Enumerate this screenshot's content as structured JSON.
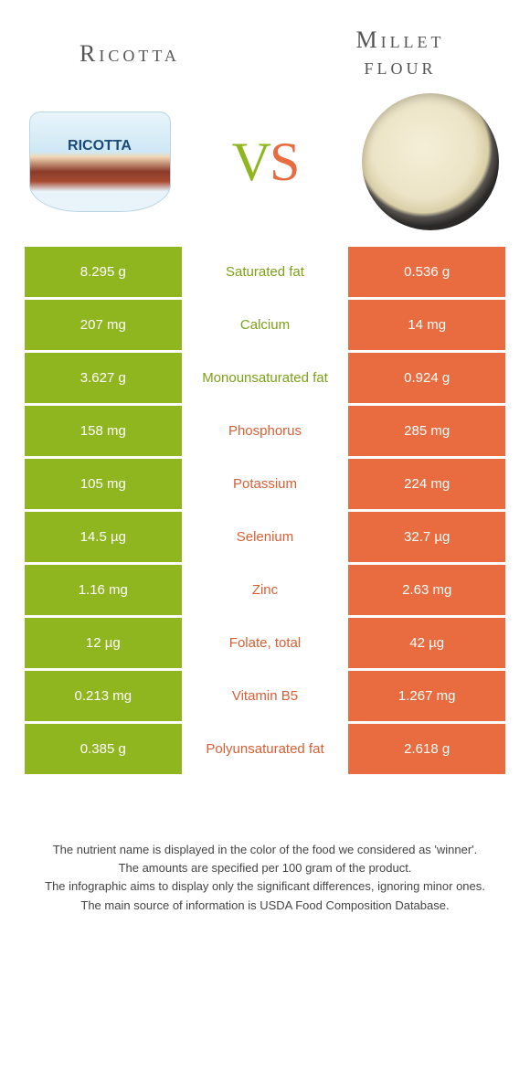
{
  "titles": {
    "left": "Ricotta",
    "right_line1": "Millet",
    "right_line2": "flour"
  },
  "vs": {
    "v": "V",
    "s": "S"
  },
  "colors": {
    "green": "#8fb51f",
    "orange": "#e86c3f",
    "text_green": "#7da019",
    "text_orange": "#d95f34",
    "bg": "#ffffff"
  },
  "table": {
    "rows": [
      {
        "left": "8.295 g",
        "name": "Saturated fat",
        "right": "0.536 g",
        "winner": "left"
      },
      {
        "left": "207 mg",
        "name": "Calcium",
        "right": "14 mg",
        "winner": "left"
      },
      {
        "left": "3.627 g",
        "name": "Monounsaturated fat",
        "right": "0.924 g",
        "winner": "left"
      },
      {
        "left": "158 mg",
        "name": "Phosphorus",
        "right": "285 mg",
        "winner": "right"
      },
      {
        "left": "105 mg",
        "name": "Potassium",
        "right": "224 mg",
        "winner": "right"
      },
      {
        "left": "14.5 µg",
        "name": "Selenium",
        "right": "32.7 µg",
        "winner": "right"
      },
      {
        "left": "1.16 mg",
        "name": "Zinc",
        "right": "2.63 mg",
        "winner": "right"
      },
      {
        "left": "12 µg",
        "name": "Folate, total",
        "right": "42 µg",
        "winner": "right"
      },
      {
        "left": "0.213 mg",
        "name": "Vitamin B5",
        "right": "1.267 mg",
        "winner": "right"
      },
      {
        "left": "0.385 g",
        "name": "Polyunsaturated fat",
        "right": "2.618 g",
        "winner": "right"
      }
    ]
  },
  "footer": {
    "l1": "The nutrient name is displayed in the color of the food we considered as 'winner'.",
    "l2": "The amounts are specified per 100 gram of the product.",
    "l3": "The infographic aims to display only the significant differences, ignoring minor ones.",
    "l4": "The main source of information is USDA Food Composition Database."
  }
}
